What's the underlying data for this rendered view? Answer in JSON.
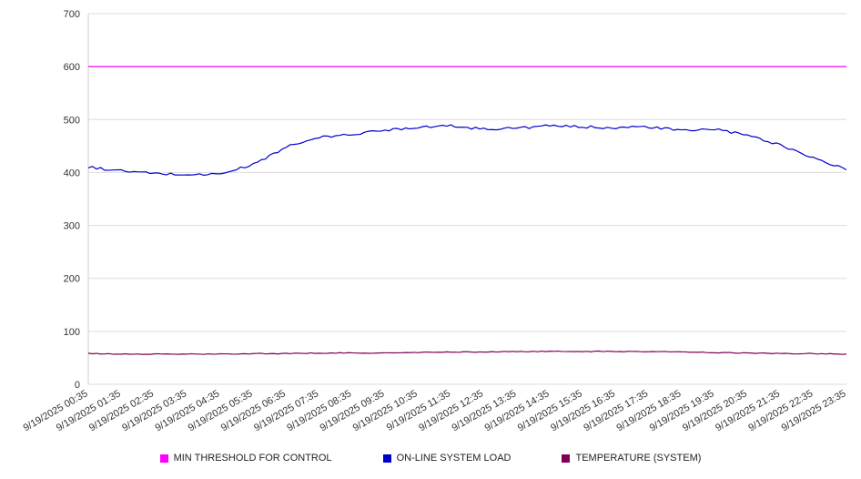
{
  "chart_data": {
    "type": "line",
    "title": "",
    "xlabel": "",
    "ylabel": "",
    "ylim": [
      0,
      700
    ],
    "y_ticks": [
      0,
      100,
      200,
      300,
      400,
      500,
      600,
      700
    ],
    "grid": true,
    "legend_position": "bottom",
    "x_labels": [
      "9/19/2025 00:35",
      "9/19/2025 01:35",
      "9/19/2025 02:35",
      "9/19/2025 03:35",
      "9/19/2025 04:35",
      "9/19/2025 05:35",
      "9/19/2025 06:35",
      "9/19/2025 07:35",
      "9/19/2025 08:35",
      "9/19/2025 09:35",
      "9/19/2025 10:35",
      "9/19/2025 11:35",
      "9/19/2025 12:35",
      "9/19/2025 13:35",
      "9/19/2025 14:35",
      "9/19/2025 15:35",
      "9/19/2025 16:35",
      "9/19/2025 17:35",
      "9/19/2025 18:35",
      "9/19/2025 19:35",
      "9/19/2025 20:35",
      "9/19/2025 21:35",
      "9/19/2025 22:35",
      "9/19/2025 23:35"
    ],
    "series": [
      {
        "name": "MIN THRESHOLD FOR CONTROL",
        "color": "#ff00ff",
        "noise": 0,
        "values": [
          600,
          600,
          600,
          600,
          600,
          600,
          600,
          600,
          600,
          600,
          600,
          600,
          600,
          600,
          600,
          600,
          600,
          600,
          600,
          600,
          600,
          600,
          600,
          600
        ]
      },
      {
        "name": "ON-LINE SYSTEM LOAD",
        "color": "#0000cc",
        "noise": 2.5,
        "values": [
          410,
          403,
          398,
          396,
          397,
          415,
          448,
          466,
          472,
          480,
          486,
          488,
          482,
          484,
          488,
          486,
          485,
          486,
          479,
          482,
          470,
          452,
          428,
          405
        ]
      },
      {
        "name": "TEMPERATURE (SYSTEM)",
        "color": "#800055",
        "noise": 0.8,
        "values": [
          58,
          57,
          57,
          57,
          57,
          58,
          58,
          59,
          59,
          59,
          60,
          61,
          61,
          62,
          62,
          62,
          62,
          62,
          61,
          60,
          59,
          58,
          58,
          57
        ]
      }
    ]
  }
}
